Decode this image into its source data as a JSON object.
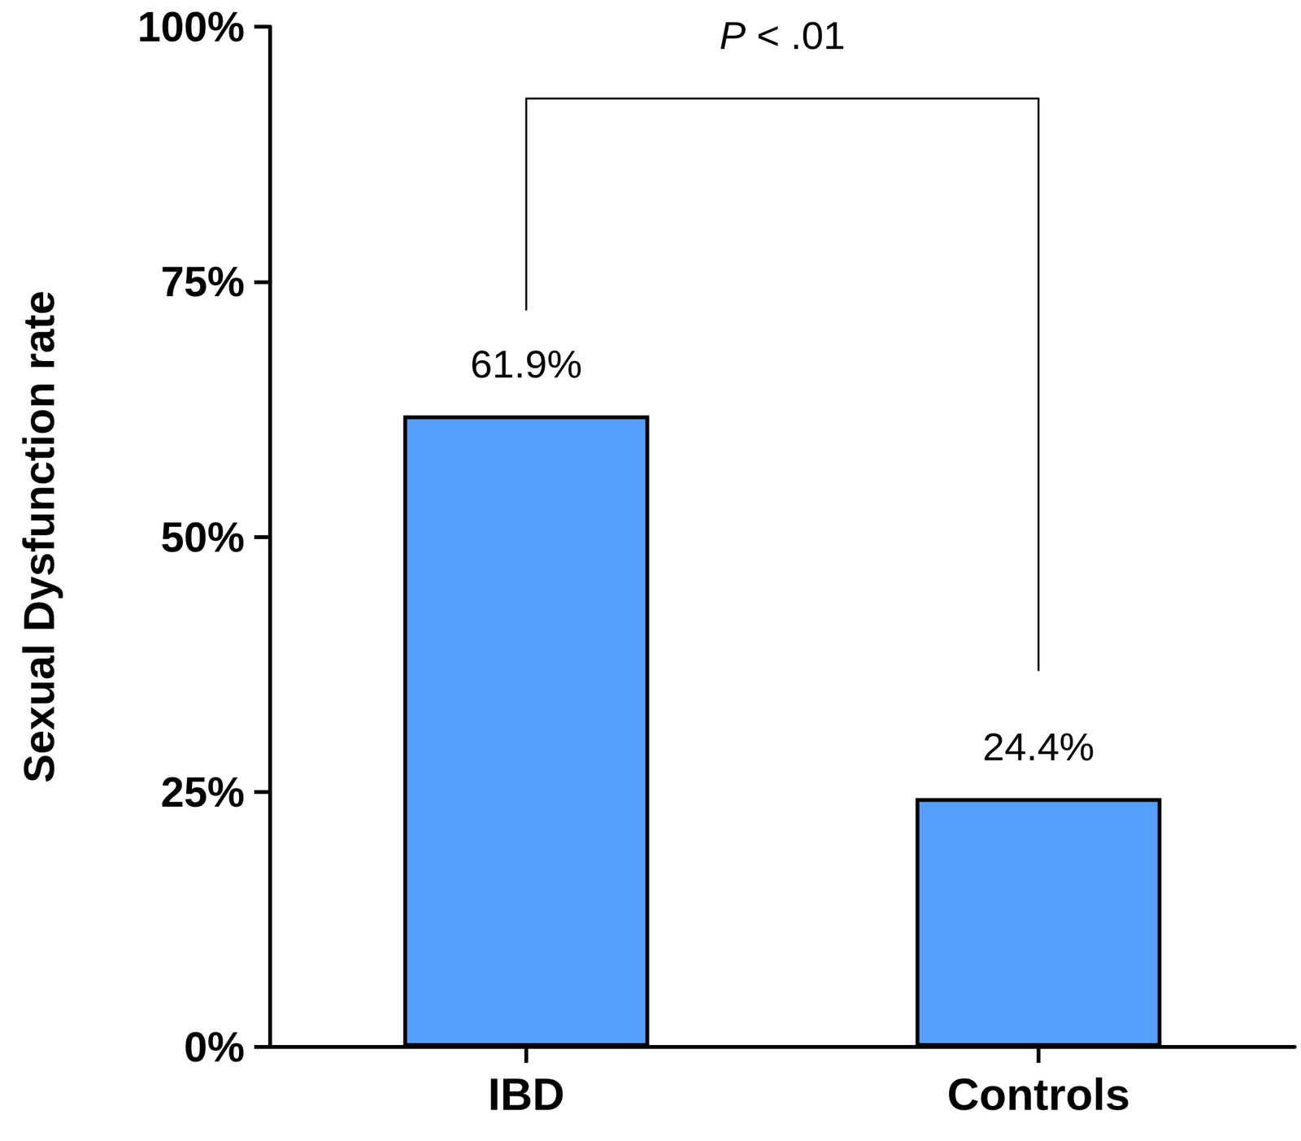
{
  "chart_data": {
    "type": "bar",
    "y_label": "Sexual Dysfunction rate",
    "categories": [
      "IBD",
      "Controls"
    ],
    "values": [
      61.9,
      24.4
    ],
    "value_labels": [
      "61.9%",
      "24.4%"
    ],
    "data_labels": true,
    "color": "#579ffc",
    "ylim": [
      0,
      100
    ],
    "yticks": [
      {
        "value": 0,
        "label": "0%"
      },
      {
        "value": 25,
        "label": "25%"
      },
      {
        "value": 50,
        "label": "50%"
      },
      {
        "value": 75,
        "label": "75%"
      },
      {
        "value": 100,
        "label": "100%"
      }
    ],
    "grid": false,
    "annotations": [
      {
        "text": "P < .01",
        "between": [
          "IBD",
          "Controls"
        ]
      }
    ]
  }
}
